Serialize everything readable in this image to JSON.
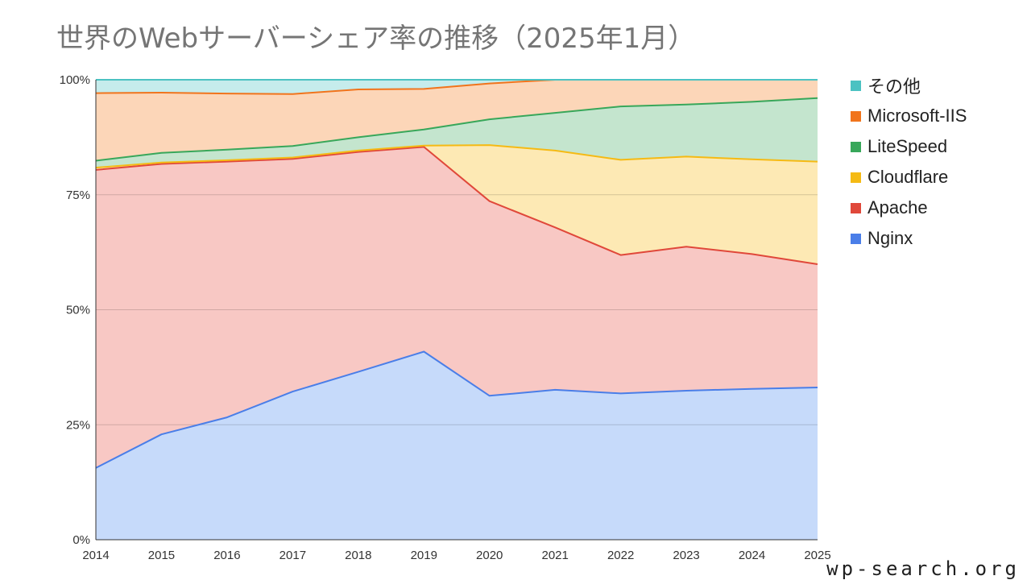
{
  "watermark": "wp-search.org",
  "chart_data": {
    "type": "area",
    "stacked": true,
    "title": "世界のWebサーバーシェア率の推移（2025年1月）",
    "xlabel": "",
    "ylabel": "",
    "ylim": [
      0,
      100
    ],
    "yticks": [
      "0%",
      "25%",
      "50%",
      "75%",
      "100%"
    ],
    "legend_position": "right",
    "grid": true,
    "x": [
      "2014",
      "2015",
      "2016",
      "2017",
      "2018",
      "2019",
      "2020",
      "2021",
      "2022",
      "2023",
      "2024",
      "2025"
    ],
    "series": [
      {
        "name": "Nginx",
        "color": "#4a7ee8",
        "fill": "#c6dafa",
        "values": [
          15.6,
          22.9,
          26.6,
          32.2,
          36.5,
          40.9,
          31.3,
          32.6,
          31.8,
          32.4,
          32.8,
          33.1
        ]
      },
      {
        "name": "Apache",
        "color": "#e0483a",
        "fill": "#f8c8c4",
        "values": [
          64.8,
          58.8,
          55.6,
          50.6,
          47.8,
          44.5,
          42.3,
          35.3,
          30.1,
          31.3,
          29.3,
          26.8
        ]
      },
      {
        "name": "Cloudflare",
        "color": "#f5ba14",
        "fill": "#fde9b4",
        "values": [
          0.5,
          0.3,
          0.3,
          0.3,
          0.3,
          0.3,
          12.2,
          16.7,
          20.7,
          19.6,
          20.6,
          22.3
        ]
      },
      {
        "name": "LiteSpeed",
        "color": "#38a75a",
        "fill": "#c4e5ce",
        "values": [
          1.5,
          2.1,
          2.3,
          2.5,
          2.9,
          3.5,
          5.6,
          8.2,
          11.6,
          11.3,
          12.5,
          13.8
        ]
      },
      {
        "name": "Microsoft-IIS",
        "color": "#f1741c",
        "fill": "#fcd6b8",
        "values": [
          14.7,
          13.1,
          12.2,
          11.3,
          10.4,
          8.8,
          7.8,
          7.2,
          5.8,
          5.4,
          4.8,
          4.0
        ]
      },
      {
        "name": "その他",
        "color": "#4bc2c2",
        "fill": "#c6ecec",
        "values": [
          2.9,
          2.8,
          3.0,
          3.1,
          2.1,
          2.0,
          0.8,
          0.0,
          0.0,
          0.0,
          0.0,
          0.0
        ]
      }
    ],
    "legend_order": [
      "その他",
      "Microsoft-IIS",
      "LiteSpeed",
      "Cloudflare",
      "Apache",
      "Nginx"
    ]
  }
}
